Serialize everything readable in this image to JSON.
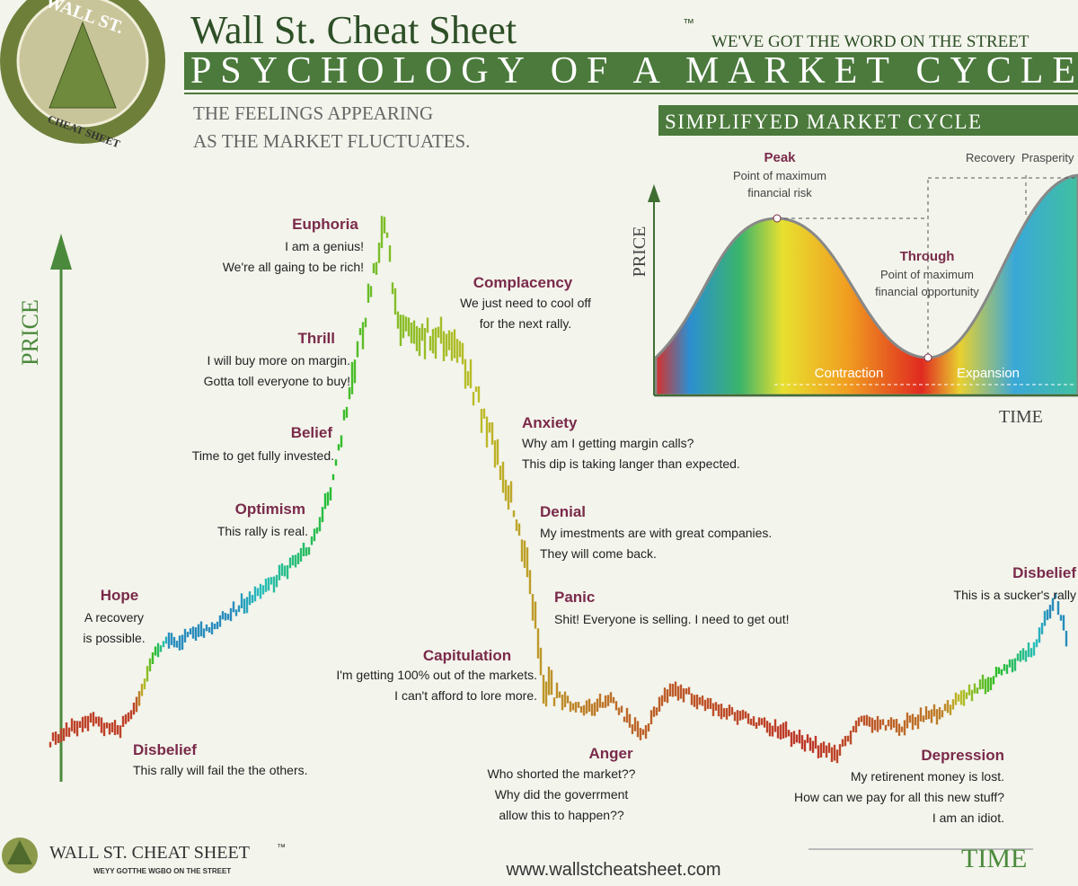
{
  "header": {
    "brand": "Wall St. Cheat Sheet",
    "trademark": "™",
    "tagline": "WE'VE GOT THE WORD ON THE STREET",
    "title": "PSYCHOLOGY OF A MARKET CYCLE",
    "subtitle": [
      "THE FEELINGS APPEARING",
      "AS THE MARKET FLUCTUATES."
    ]
  },
  "logo": {
    "top": "WALL ST.",
    "bottom": "CHEAT SHEET"
  },
  "main_chart": {
    "y_label": "PRICE",
    "x_label": "TIME",
    "stages": [
      {
        "title": "Disbelief",
        "lines": [
          "This rally will fail the the others."
        ]
      },
      {
        "title": "Hope",
        "lines": [
          "A recovery",
          "is possible."
        ]
      },
      {
        "title": "Optimism",
        "lines": [
          "This rally is real."
        ]
      },
      {
        "title": "Belief",
        "lines": [
          "Time to get fully invested."
        ]
      },
      {
        "title": "Thrill",
        "lines": [
          "I will buy more on margin.",
          "Gotta toll everyone to buy!"
        ]
      },
      {
        "title": "Euphoria",
        "lines": [
          "I am a genius!",
          "We're all gaing to be rich!"
        ]
      },
      {
        "title": "Complacency",
        "lines": [
          "We just need to cool off",
          "for the next rally."
        ]
      },
      {
        "title": "Anxiety",
        "lines": [
          "Why am I getting margin calls?",
          "This dip is taking langer than expected."
        ]
      },
      {
        "title": "Denial",
        "lines": [
          "My imestments are with great companies.",
          "They will come back."
        ]
      },
      {
        "title": "Panic",
        "lines": [
          "Shit! Everyone is selling. I need to get out!"
        ]
      },
      {
        "title": "Capitulation",
        "lines": [
          "I'm getting 100% out of the markets.",
          "I can't afford to lore more."
        ]
      },
      {
        "title": "Anger",
        "lines": [
          "Who shorted the market??",
          "Why did the goverrment",
          "allow this to happen??"
        ]
      },
      {
        "title": "Depression",
        "lines": [
          "My retirenent money is lost.",
          "How can we pay for all this new stuff?",
          "I am an idiot."
        ]
      },
      {
        "title": "Disbelief",
        "lines": [
          "This is a sucker's rally"
        ]
      }
    ]
  },
  "inset": {
    "title": "SIMPLIFYED MARKET CYCLE",
    "y_label": "PRICE",
    "x_label": "TIME",
    "peak": {
      "title": "Peak",
      "lines": [
        "Point of maximum",
        "financial risk"
      ]
    },
    "trough": {
      "title": "Through",
      "lines": [
        "Point of maximum",
        "financial opportunity"
      ]
    },
    "phases": [
      "Recovery",
      "Prasperity",
      "Contraction",
      "Expansion"
    ]
  },
  "footer": {
    "brand": "WALL ST. CHEAT SHEET",
    "trademark": "™",
    "tagline": "WEYY GOTTHE WGBO ON THE STREET",
    "url": "www.wallstcheatsheet.com"
  }
}
